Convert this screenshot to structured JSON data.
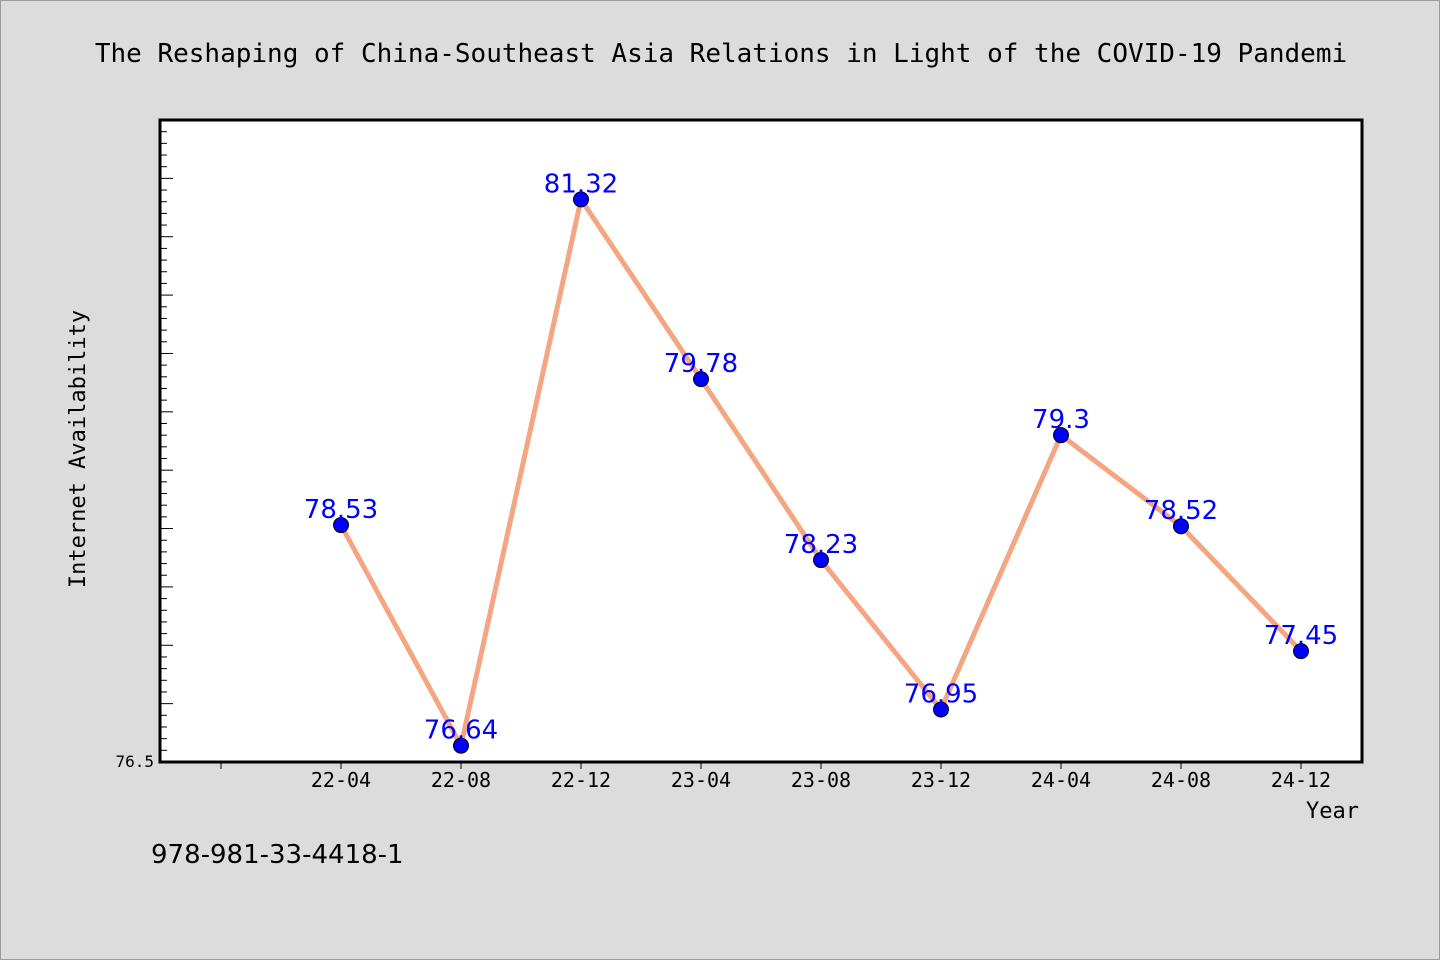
{
  "chart_data": {
    "type": "line",
    "title": "The Reshaping of China-Southeast Asia Relations in Light of the COVID-19 Pandemi",
    "xlabel": "Year",
    "ylabel": "Internet Availability",
    "categories": [
      "22-04",
      "22-08",
      "22-12",
      "23-04",
      "23-08",
      "23-12",
      "24-04",
      "24-08",
      "24-12"
    ],
    "series": [
      {
        "values": [
          78.53,
          76.64,
          81.32,
          79.78,
          78.23,
          76.95,
          79.3,
          78.52,
          77.45
        ],
        "data_labels": [
          "78.53",
          "76.64",
          "81.32",
          "79.78",
          "78.23",
          "76.95",
          "79.3",
          "78.52",
          "77.45"
        ]
      }
    ],
    "y_tick_label": "76.5",
    "ylim": [
      76.5,
      82.0
    ],
    "grid": false,
    "legend": "none",
    "colors": {
      "line": "#f4a582",
      "marker": "#0000ff",
      "label": "#0000ff",
      "background": "#dcdcdc",
      "plot_background": "#ffffff"
    }
  },
  "footer": {
    "isbn": "978-981-33-4418-1"
  }
}
